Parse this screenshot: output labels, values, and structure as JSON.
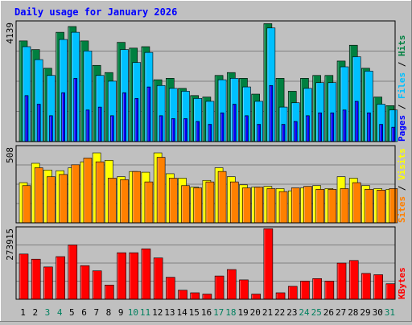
{
  "chart_data": {
    "type": "bar",
    "title": "Daily usage for January 2026",
    "categories": [
      "1",
      "2",
      "3",
      "4",
      "5",
      "6",
      "7",
      "8",
      "9",
      "10",
      "11",
      "12",
      "13",
      "14",
      "15",
      "16",
      "17",
      "18",
      "19",
      "20",
      "21",
      "22",
      "23",
      "24",
      "25",
      "26",
      "27",
      "28",
      "29",
      "30",
      "31"
    ],
    "weekend_days": [
      "3",
      "4",
      "10",
      "11",
      "17",
      "18",
      "24",
      "25",
      "31"
    ],
    "panels": [
      {
        "scale_label": "4139",
        "ymax": 4139,
        "axis_label": [
          "Pages",
          "Files",
          "Hits"
        ],
        "series": [
          {
            "name": "Hits",
            "color": "#008040",
            "values": [
              3500,
              3200,
              2550,
              3800,
              4000,
              3500,
              2650,
              2400,
              3450,
              3250,
              3300,
              2150,
              2200,
              1850,
              1600,
              1550,
              2300,
              2400,
              2200,
              1650,
              4100,
              2200,
              1750,
              2200,
              2300,
              2300,
              2800,
              3350,
              2550,
              1550,
              1250
            ]
          },
          {
            "name": "Files",
            "color": "#00c0ff",
            "values": [
              3300,
              2850,
              2300,
              3550,
              3800,
              3150,
              2300,
              2100,
              3200,
              2750,
              3100,
              1950,
              1850,
              1750,
              1500,
              1400,
              2150,
              2200,
              1900,
              1400,
              3950,
              1200,
              1350,
              1850,
              2050,
              2050,
              2600,
              2950,
              2450,
              1300,
              1100
            ]
          },
          {
            "name": "Pages",
            "color": "#0000ff",
            "values": [
              1600,
              1300,
              900,
              1700,
              2200,
              1100,
              1200,
              900,
              1700,
              1500,
              1900,
              900,
              800,
              800,
              700,
              600,
              1000,
              1300,
              900,
              600,
              1950,
              600,
              700,
              900,
              1000,
              1000,
              1100,
              1400,
              1000,
              600,
              500
            ]
          }
        ]
      },
      {
        "scale_label": "508",
        "ymax": 508,
        "axis_label": [
          "Sites",
          "Visits"
        ],
        "series": [
          {
            "name": "Visits",
            "color": "#ffff00",
            "values": [
              270,
              400,
              355,
              350,
              370,
              410,
              470,
              420,
              310,
              345,
              340,
              470,
              330,
              300,
              240,
              285,
              370,
              310,
              255,
              240,
              245,
              230,
              215,
              235,
              250,
              230,
              310,
              300,
              250,
              230,
              225
            ]
          },
          {
            "name": "Sites",
            "color": "#ff8000",
            "values": [
              250,
              370,
              310,
              325,
              390,
              435,
              410,
              300,
              290,
              345,
              275,
              440,
              300,
              250,
              235,
              275,
              345,
              275,
              235,
              240,
              230,
              210,
              235,
              245,
              225,
              225,
              230,
              270,
              225,
              220,
              230
            ]
          }
        ]
      },
      {
        "scale_label": "273915",
        "ymax": 273915,
        "axis_label": [
          "KBytes"
        ],
        "series": [
          {
            "name": "KBytes",
            "color": "#ff0000",
            "values": [
              175000,
              155000,
              125000,
              165000,
              210000,
              130000,
              110000,
              55000,
              180000,
              180000,
              195000,
              160000,
              85000,
              35000,
              25000,
              20000,
              90000,
              115000,
              75000,
              20000,
              273000,
              25000,
              50000,
              70000,
              80000,
              70000,
              140000,
              150000,
              100000,
              95000,
              60000
            ]
          }
        ]
      }
    ]
  }
}
